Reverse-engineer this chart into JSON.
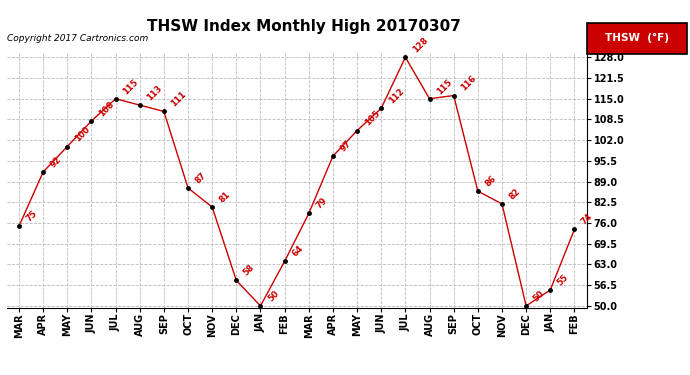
{
  "title": "THSW Index Monthly High 20170307",
  "copyright": "Copyright 2017 Cartronics.com",
  "legend_label": "THSW  (°F)",
  "x_labels": [
    "MAR",
    "APR",
    "MAY",
    "JUN",
    "JUL",
    "AUG",
    "SEP",
    "OCT",
    "NOV",
    "DEC",
    "JAN",
    "FEB",
    "MAR",
    "APR",
    "MAY",
    "JUN",
    "JUL",
    "AUG",
    "SEP",
    "OCT",
    "NOV",
    "DEC",
    "JAN",
    "FEB"
  ],
  "y_values": [
    75,
    92,
    100,
    108,
    115,
    113,
    111,
    87,
    81,
    58,
    50,
    64,
    79,
    97,
    105,
    112,
    128,
    115,
    116,
    86,
    82,
    50,
    55,
    74
  ],
  "ylim_min": 50.0,
  "ylim_max": 128.0,
  "yticks": [
    50.0,
    56.5,
    63.0,
    69.5,
    76.0,
    82.5,
    89.0,
    95.5,
    102.0,
    108.5,
    115.0,
    121.5,
    128.0
  ],
  "line_color": "#cc0000",
  "marker_color": "#000000",
  "bg_color": "#ffffff",
  "grid_color": "#bbbbbb",
  "title_fontsize": 11,
  "copyright_fontsize": 6.5,
  "tick_fontsize": 7,
  "annot_fontsize": 6,
  "legend_bg": "#cc0000",
  "legend_text_color": "#ffffff",
  "legend_fontsize": 7.5
}
